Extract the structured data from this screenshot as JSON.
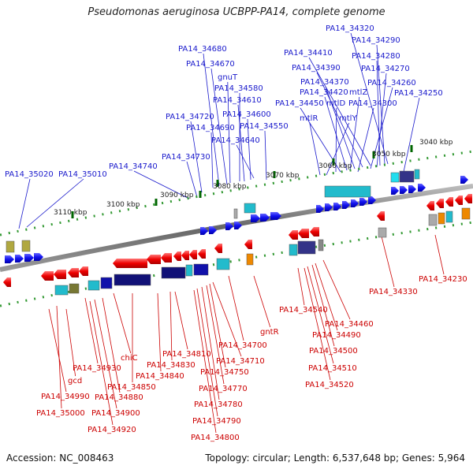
{
  "title": "Pseudomonas aeruginosa UCBPP-PA14, complete genome",
  "footer": {
    "accession": "Accession: NC_008463",
    "summary": "Topology: circular; Length: 6,537,648 bp; Genes: 5,964"
  },
  "colors": {
    "forward_label": "#1a1acc",
    "reverse_label": "#cc0000",
    "forward_gene": "#1e1eff",
    "reverse_gene": "#ff1a1a",
    "backbone": "#777777",
    "tick": "#339933",
    "tick_major": "#006600"
  },
  "ticks": [
    {
      "label": "3040 kbp"
    },
    {
      "label": "3050 kbp"
    },
    {
      "label": "3060 kbp"
    },
    {
      "label": "3070 kbp"
    },
    {
      "label": "3080 kbp"
    },
    {
      "label": "3090 kbp"
    },
    {
      "label": "3100 kbp"
    },
    {
      "label": "3110 kbp"
    }
  ],
  "forward_labels": [
    "PA14_34320",
    "PA14_34290",
    "PA14_34410",
    "PA14_34280",
    "PA14_34390",
    "PA14_34270",
    "PA14_34370",
    "PA14_34260",
    "PA14_34420",
    "mtlZ",
    "PA14_34250",
    "PA14_34450",
    "mtlD",
    "PA14_34300",
    "mtlR",
    "mtlY",
    "PA14_34680",
    "PA14_34670",
    "gnuT",
    "PA14_34580",
    "PA14_34610",
    "PA14_34600",
    "PA14_34720",
    "PA14_34690",
    "PA14_34550",
    "PA14_34640",
    "PA14_34730",
    "PA14_34740",
    "PA14_35020",
    "PA14_35010"
  ],
  "reverse_labels": [
    "PA14_34230",
    "PA14_34330",
    "PA14_34540",
    "PA14_34460",
    "PA14_34490",
    "PA14_34500",
    "PA14_34510",
    "PA14_34520",
    "gntR",
    "PA14_34700",
    "PA14_34810",
    "PA14_34710",
    "PA14_34830",
    "PA14_34750",
    "chiC",
    "PA14_34840",
    "PA14_34930",
    "gcd",
    "PA14_34850",
    "PA14_34770",
    "PA14_34880",
    "PA14_34990",
    "PA14_34780",
    "PA14_35000",
    "PA14_34900",
    "PA14_34790",
    "PA14_34920",
    "PA14_34800"
  ]
}
